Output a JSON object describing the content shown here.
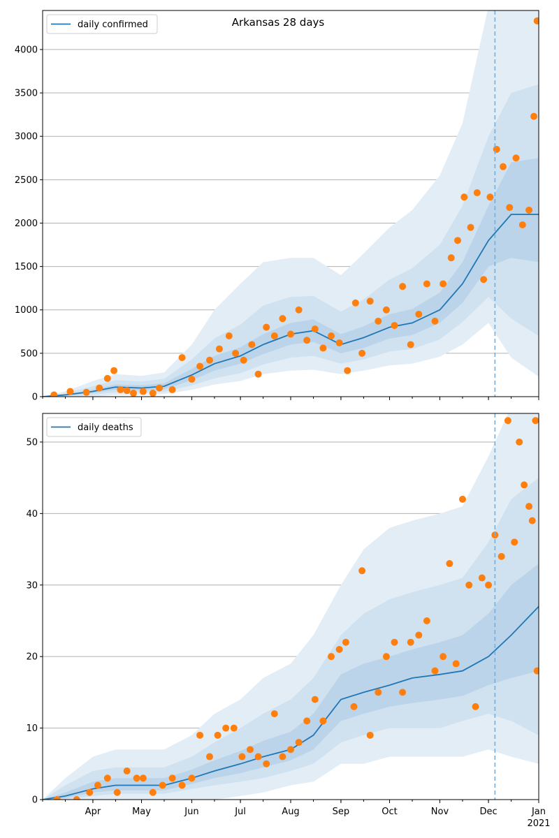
{
  "colors": {
    "model_line": "#1f77b4",
    "observed": "#ff7f0e",
    "band_outer": "#e3edf6",
    "band_mid": "#d0e1f0",
    "band_inner": "#bcd4ea",
    "grid": "#b0b0b0",
    "cutoff": "#7aaed6"
  },
  "x_axis": {
    "tick_labels": [
      "Apr",
      "May",
      "Jun",
      "Jul",
      "Aug",
      "Sep",
      "Oct",
      "Nov",
      "Dec",
      "Jan"
    ],
    "year_label": "2021",
    "range": [
      "2020-03-01",
      "2021-01-01"
    ],
    "cutoff_date": "2020-12-05"
  },
  "chart_data": [
    {
      "type": "line",
      "title": "Arkansas 28 days",
      "legend": "daily confirmed",
      "legend_position": "top-left",
      "grid": "horizontal",
      "ylim": [
        0,
        4450
      ],
      "yticks": [
        0,
        500,
        1000,
        1500,
        2000,
        2500,
        3000,
        3500,
        4000
      ],
      "model": {
        "x": [
          "2020-03-01",
          "2020-03-15",
          "2020-04-01",
          "2020-04-15",
          "2020-05-01",
          "2020-05-15",
          "2020-06-01",
          "2020-06-15",
          "2020-07-01",
          "2020-07-15",
          "2020-08-01",
          "2020-08-15",
          "2020-09-01",
          "2020-09-15",
          "2020-10-01",
          "2020-10-15",
          "2020-11-01",
          "2020-11-15",
          "2020-12-01",
          "2020-12-15",
          "2021-01-01"
        ],
        "y": [
          0,
          20,
          60,
          110,
          100,
          120,
          250,
          380,
          470,
          600,
          720,
          760,
          600,
          680,
          800,
          850,
          1000,
          1300,
          1800,
          2100,
          2100
        ]
      },
      "band_outer": {
        "lower": [
          0,
          0,
          0,
          20,
          20,
          30,
          80,
          140,
          180,
          260,
          300,
          310,
          260,
          300,
          360,
          380,
          460,
          600,
          850,
          450,
          230
        ],
        "upper": [
          0,
          60,
          180,
          260,
          240,
          280,
          600,
          1000,
          1300,
          1550,
          1600,
          1600,
          1400,
          1650,
          1950,
          2150,
          2550,
          3150,
          4500,
          4500,
          4500
        ]
      },
      "band_mid": {
        "lower": [
          0,
          5,
          20,
          50,
          45,
          55,
          130,
          210,
          270,
          370,
          450,
          470,
          380,
          430,
          520,
          550,
          660,
          860,
          1150,
          900,
          700
        ],
        "upper": [
          0,
          40,
          120,
          190,
          175,
          205,
          430,
          670,
          830,
          1050,
          1150,
          1160,
          980,
          1120,
          1350,
          1480,
          1750,
          2200,
          3000,
          3500,
          3600
        ]
      },
      "band_inner": {
        "lower": [
          0,
          12,
          40,
          80,
          70,
          85,
          190,
          300,
          380,
          490,
          600,
          630,
          500,
          560,
          670,
          710,
          850,
          1080,
          1500,
          1600,
          1550
        ],
        "upper": [
          0,
          28,
          80,
          140,
          130,
          155,
          320,
          470,
          570,
          720,
          850,
          890,
          720,
          810,
          950,
          1010,
          1200,
          1550,
          2200,
          2700,
          2750
        ]
      },
      "observed": {
        "x": [
          "2020-03-08",
          "2020-03-18",
          "2020-03-28",
          "2020-04-05",
          "2020-04-10",
          "2020-04-14",
          "2020-04-18",
          "2020-04-22",
          "2020-04-26",
          "2020-05-02",
          "2020-05-08",
          "2020-05-12",
          "2020-05-20",
          "2020-05-26",
          "2020-06-01",
          "2020-06-06",
          "2020-06-12",
          "2020-06-18",
          "2020-06-24",
          "2020-06-28",
          "2020-07-03",
          "2020-07-08",
          "2020-07-12",
          "2020-07-17",
          "2020-07-22",
          "2020-07-27",
          "2020-08-01",
          "2020-08-06",
          "2020-08-11",
          "2020-08-16",
          "2020-08-21",
          "2020-08-26",
          "2020-08-31",
          "2020-09-05",
          "2020-09-10",
          "2020-09-14",
          "2020-09-19",
          "2020-09-24",
          "2020-09-29",
          "2020-10-04",
          "2020-10-09",
          "2020-10-14",
          "2020-10-19",
          "2020-10-24",
          "2020-10-29",
          "2020-11-03",
          "2020-11-08",
          "2020-11-12",
          "2020-11-16",
          "2020-11-20",
          "2020-11-24",
          "2020-11-28",
          "2020-12-02",
          "2020-12-06",
          "2020-12-10",
          "2020-12-14",
          "2020-12-18",
          "2020-12-22",
          "2020-12-26",
          "2020-12-29",
          "2020-12-31"
        ],
        "y": [
          20,
          60,
          50,
          100,
          210,
          300,
          80,
          70,
          40,
          60,
          40,
          100,
          80,
          450,
          200,
          350,
          420,
          550,
          700,
          500,
          420,
          600,
          260,
          800,
          700,
          900,
          720,
          1000,
          650,
          780,
          560,
          700,
          620,
          300,
          1080,
          500,
          1100,
          870,
          1000,
          820,
          1270,
          600,
          950,
          1300,
          870,
          1300,
          1600,
          1800,
          2300,
          1950,
          2350,
          1350,
          2300,
          2850,
          2650,
          2180,
          2750,
          1980,
          2150,
          3230,
          4330
        ]
      }
    },
    {
      "type": "line",
      "title": "",
      "legend": "daily deaths",
      "legend_position": "top-left",
      "grid": "horizontal",
      "ylim": [
        0,
        54
      ],
      "yticks": [
        0,
        10,
        20,
        30,
        40,
        50
      ],
      "model": {
        "x": [
          "2020-03-01",
          "2020-03-15",
          "2020-04-01",
          "2020-04-15",
          "2020-05-01",
          "2020-05-15",
          "2020-06-01",
          "2020-06-15",
          "2020-07-01",
          "2020-07-15",
          "2020-08-01",
          "2020-08-15",
          "2020-09-01",
          "2020-09-15",
          "2020-10-01",
          "2020-10-15",
          "2020-11-01",
          "2020-11-15",
          "2020-12-01",
          "2020-12-15",
          "2021-01-01"
        ],
        "y": [
          0,
          0.5,
          1.5,
          2,
          2,
          2,
          3,
          4,
          5,
          6,
          7,
          9,
          14,
          15,
          16,
          17,
          17.5,
          18,
          20,
          23,
          27
        ]
      },
      "band_outer": {
        "lower": [
          0,
          0,
          0,
          0,
          0,
          0,
          0,
          0,
          0.5,
          1,
          2,
          2.5,
          5,
          5,
          6,
          6,
          6,
          6,
          7,
          6,
          5
        ],
        "upper": [
          0,
          3,
          6,
          7,
          7,
          7,
          9,
          12,
          14,
          17,
          19,
          23,
          30,
          35,
          38,
          39,
          40,
          41,
          48,
          55,
          55
        ]
      },
      "band_mid": {
        "lower": [
          0,
          0,
          0.5,
          0.8,
          0.8,
          0.8,
          1.5,
          2,
          2.5,
          3,
          4,
          5,
          8,
          9,
          10,
          10,
          10,
          11,
          12,
          11,
          9
        ],
        "upper": [
          0,
          2,
          4,
          4.5,
          4.5,
          4.5,
          6,
          8,
          10,
          12,
          14,
          17,
          23,
          26,
          28,
          29,
          30,
          31,
          36,
          42,
          45
        ]
      },
      "band_inner": {
        "lower": [
          0,
          0.2,
          1,
          1.3,
          1.3,
          1.3,
          2.2,
          3,
          3.7,
          4.5,
          5.5,
          7,
          11,
          12,
          13,
          13.5,
          14,
          14.5,
          16,
          17,
          18
        ],
        "upper": [
          0,
          1,
          2.5,
          3,
          3,
          3,
          4.2,
          5.5,
          6.8,
          8.2,
          9.5,
          12,
          17.5,
          19,
          20,
          21,
          22,
          23,
          26,
          30,
          33
        ]
      },
      "observed": {
        "x": [
          "2020-03-10",
          "2020-03-22",
          "2020-03-30",
          "2020-04-04",
          "2020-04-10",
          "2020-04-16",
          "2020-04-22",
          "2020-04-28",
          "2020-05-02",
          "2020-05-08",
          "2020-05-14",
          "2020-05-20",
          "2020-05-26",
          "2020-06-01",
          "2020-06-06",
          "2020-06-12",
          "2020-06-17",
          "2020-06-22",
          "2020-06-27",
          "2020-07-02",
          "2020-07-07",
          "2020-07-12",
          "2020-07-17",
          "2020-07-22",
          "2020-07-27",
          "2020-08-01",
          "2020-08-06",
          "2020-08-11",
          "2020-08-16",
          "2020-08-21",
          "2020-08-26",
          "2020-08-31",
          "2020-09-04",
          "2020-09-09",
          "2020-09-14",
          "2020-09-19",
          "2020-09-24",
          "2020-09-29",
          "2020-10-04",
          "2020-10-09",
          "2020-10-14",
          "2020-10-19",
          "2020-10-24",
          "2020-10-29",
          "2020-11-03",
          "2020-11-07",
          "2020-11-11",
          "2020-11-15",
          "2020-11-19",
          "2020-11-23",
          "2020-11-27",
          "2020-12-01",
          "2020-12-05",
          "2020-12-09",
          "2020-12-13",
          "2020-12-17",
          "2020-12-20",
          "2020-12-23",
          "2020-12-26",
          "2020-12-28",
          "2020-12-30",
          "2020-12-31"
        ],
        "y": [
          0,
          0,
          1,
          2,
          3,
          1,
          4,
          3,
          3,
          1,
          2,
          3,
          2,
          3,
          9,
          6,
          9,
          10,
          10,
          6,
          7,
          6,
          5,
          12,
          6,
          7,
          8,
          11,
          14,
          11,
          20,
          21,
          22,
          13,
          32,
          9,
          15,
          20,
          22,
          15,
          22,
          23,
          25,
          18,
          20,
          33,
          19,
          42,
          30,
          13,
          31,
          30,
          37,
          34,
          53,
          36,
          50,
          44,
          41,
          39,
          53,
          18
        ]
      }
    }
  ]
}
